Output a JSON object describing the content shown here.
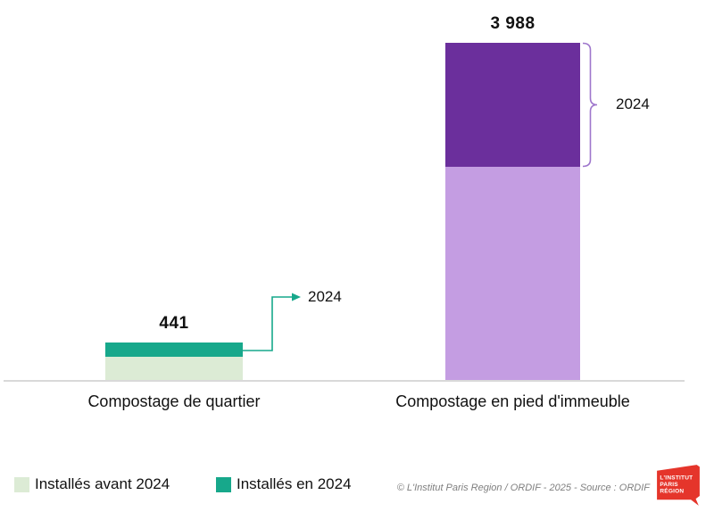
{
  "chart_data": {
    "type": "bar",
    "stacked": true,
    "orientation": "vertical",
    "categories": [
      "Compostage de quartier",
      "Compostage en pied d'immeuble"
    ],
    "series": [
      {
        "name": "Installés avant 2024",
        "values": [
          270,
          2520
        ],
        "colors": [
          "#dcebd5",
          "#c49de2"
        ]
      },
      {
        "name": "Installés en 2024",
        "values": [
          171,
          1468
        ],
        "colors": [
          "#17a88b",
          "#6b2f9c"
        ]
      }
    ],
    "totals": [
      441,
      3988
    ],
    "total_labels": [
      "441",
      "3 988"
    ],
    "ylim": [
      0,
      4000
    ],
    "grid": false,
    "axis_line_color": "#d9d9d9",
    "legend_position": "bottom-left",
    "annotations": [
      {
        "text": "2024",
        "style": "arrow",
        "color": "#17a88b",
        "target_category": "Compostage de quartier",
        "target_series": "Installés en 2024"
      },
      {
        "text": "2024",
        "style": "bracket",
        "color": "#9e76cc",
        "target_category": "Compostage en pied d'immeuble",
        "target_series": "Installés en 2024"
      }
    ]
  },
  "legend": {
    "items": [
      {
        "label": "Installés avant 2024",
        "color": "#dcebd5"
      },
      {
        "label": "Installés en 2024",
        "color": "#17a88b"
      }
    ]
  },
  "footer": {
    "copyright": "©  L'Institut Paris Region / ORDIF - 2025 - Source : ORDIF",
    "logo_lines": [
      "L'INSTITUT",
      "PARIS",
      "RÉGION"
    ],
    "logo_color": "#e5352b"
  }
}
